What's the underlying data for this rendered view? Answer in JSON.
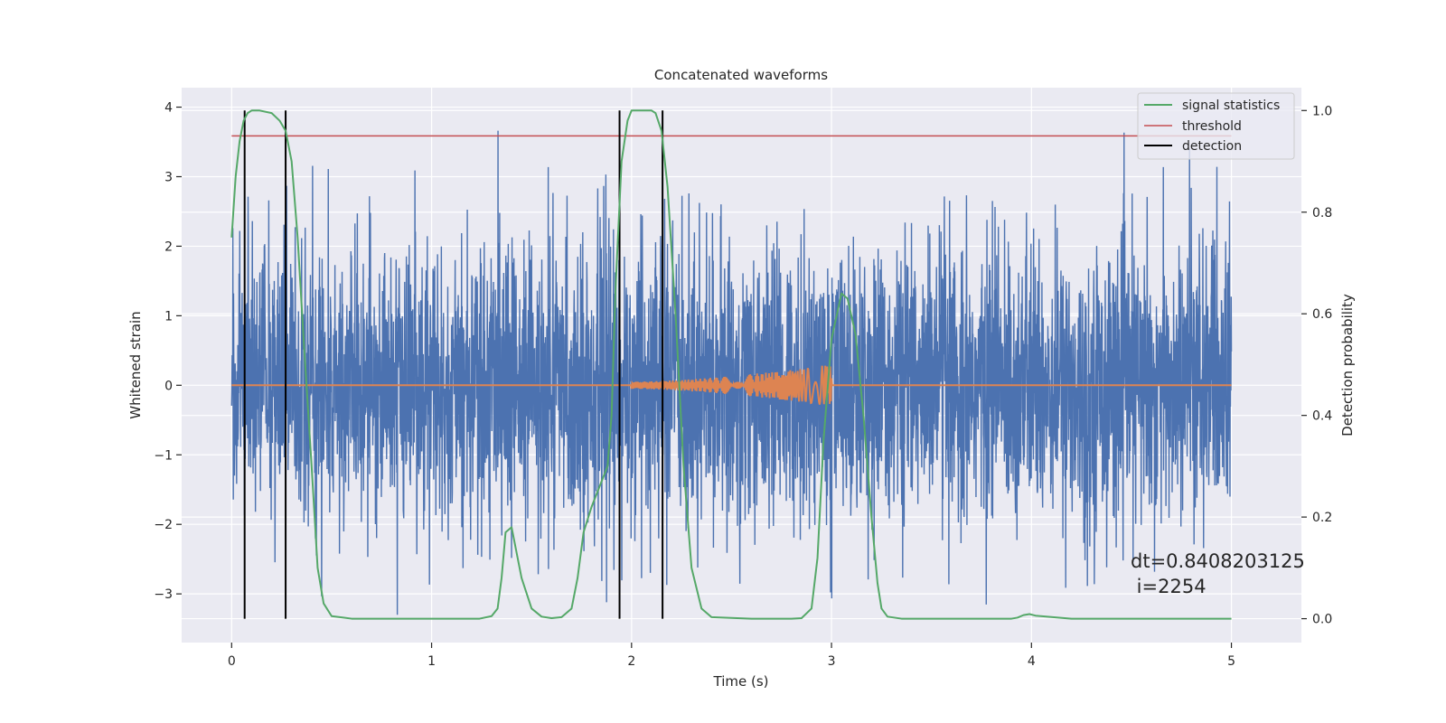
{
  "chart_data": {
    "type": "line",
    "title": "Concatenated waveforms",
    "xlabel": "Time (s)",
    "ylabel": "Whitened strain",
    "y2label": "Detection probability",
    "xlim": [
      -0.25,
      5.35
    ],
    "ylim": [
      -3.7,
      4.28
    ],
    "y2lim": [
      -0.047,
      1.045
    ],
    "x_ticks": [
      0,
      1,
      2,
      3,
      4,
      5
    ],
    "x_tick_labels": [
      "0",
      "1",
      "2",
      "3",
      "4",
      "5"
    ],
    "y_ticks": [
      -3,
      -2,
      -1,
      0,
      1,
      2,
      3,
      4
    ],
    "y_tick_labels": [
      "−3",
      "−2",
      "−1",
      "0",
      "1",
      "2",
      "3",
      "4"
    ],
    "y2_ticks": [
      0.0,
      0.2,
      0.4,
      0.6,
      0.8,
      1.0
    ],
    "y2_tick_labels": [
      "0.0",
      "0.2",
      "0.4",
      "0.6",
      "0.8",
      "1.0"
    ],
    "grid": true,
    "legend_position": "top-right",
    "legend": [
      "signal statistics",
      "threshold",
      "detection"
    ],
    "annotation": [
      "dt=0.8408203125",
      " i=2254"
    ],
    "colors": {
      "noise": "#4c72b0",
      "signal": "#dd8452",
      "statistic": "#55a868",
      "threshold": "#c44e52",
      "detection": "#000000",
      "background": "#eaeaf2"
    },
    "series": [
      {
        "name": "signal statistics",
        "axis": "right",
        "x": [
          0.0,
          0.02,
          0.04,
          0.06,
          0.08,
          0.1,
          0.14,
          0.2,
          0.24,
          0.27,
          0.3,
          0.33,
          0.36,
          0.4,
          0.43,
          0.46,
          0.5,
          0.6,
          1.0,
          1.24,
          1.3,
          1.33,
          1.35,
          1.37,
          1.4,
          1.42,
          1.45,
          1.5,
          1.55,
          1.6,
          1.65,
          1.7,
          1.73,
          1.76,
          1.8,
          1.84,
          1.88,
          1.9,
          1.92,
          1.95,
          1.98,
          2.0,
          2.1,
          2.12,
          2.15,
          2.18,
          2.22,
          2.26,
          2.3,
          2.35,
          2.4,
          2.6,
          2.8,
          2.85,
          2.9,
          2.93,
          2.96,
          3.0,
          3.05,
          3.08,
          3.12,
          3.16,
          3.2,
          3.23,
          3.25,
          3.28,
          3.35,
          3.9,
          3.93,
          3.96,
          3.99,
          4.02,
          4.2,
          4.5,
          5.0
        ],
        "values": [
          0.75,
          0.87,
          0.94,
          0.98,
          0.995,
          1.0,
          1.0,
          0.995,
          0.98,
          0.96,
          0.9,
          0.75,
          0.55,
          0.3,
          0.1,
          0.03,
          0.005,
          0.0,
          0.0,
          0.0,
          0.005,
          0.02,
          0.08,
          0.17,
          0.18,
          0.14,
          0.08,
          0.02,
          0.004,
          0.001,
          0.003,
          0.02,
          0.08,
          0.17,
          0.22,
          0.26,
          0.3,
          0.4,
          0.65,
          0.9,
          0.98,
          1.0,
          1.0,
          0.995,
          0.96,
          0.85,
          0.6,
          0.3,
          0.1,
          0.02,
          0.003,
          0.0,
          0.0,
          0.001,
          0.02,
          0.12,
          0.35,
          0.55,
          0.64,
          0.63,
          0.56,
          0.4,
          0.2,
          0.07,
          0.02,
          0.004,
          0.0,
          0.0,
          0.002,
          0.007,
          0.009,
          0.006,
          0.0,
          0.0,
          0.0
        ]
      },
      {
        "name": "threshold",
        "axis": "right",
        "x": [
          0.0,
          5.0
        ],
        "values": [
          0.95,
          0.95
        ]
      },
      {
        "name": "detection",
        "axis": "right",
        "type": "vlines",
        "x": [
          0.065,
          0.27,
          1.94,
          2.155
        ],
        "ymin": 0.0,
        "ymax": 1.0
      }
    ]
  }
}
